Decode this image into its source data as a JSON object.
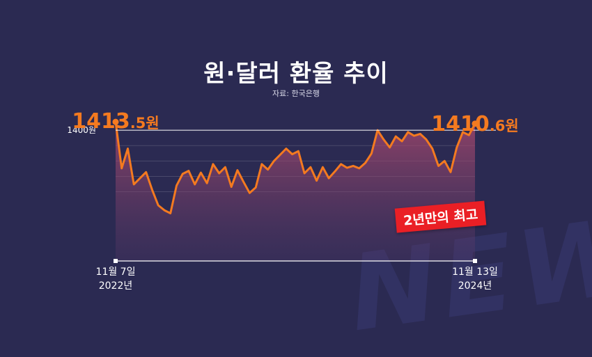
{
  "title": "원·달러 환율 추이",
  "source": "자료: 한국은행",
  "badge": "2년만의 최고",
  "watermark": "NEWS",
  "colors": {
    "background": "#2b2a52",
    "line": "#f47a20",
    "accent_red": "#ea1f25"
  },
  "chart_data": {
    "type": "area",
    "title": "원·달러 환율 추이",
    "ylim": [
      1200,
      1425
    ],
    "reference_line": {
      "value": 1400,
      "label": "1400원"
    },
    "start_value": {
      "number": "1413",
      "decimal": ".5",
      "unit": "원"
    },
    "end_value": {
      "number": "1410",
      "decimal": ".6",
      "unit": "원"
    },
    "x_labels": [
      {
        "line1": "11월 7일",
        "line2": "2022년"
      },
      {
        "line1": "11월 13일",
        "line2": "2024년"
      }
    ],
    "values": [
      1413.5,
      1338,
      1370,
      1312,
      1322,
      1332,
      1303,
      1278,
      1270,
      1265,
      1310,
      1329,
      1334,
      1312,
      1331,
      1314,
      1345,
      1330,
      1340,
      1308,
      1335,
      1316,
      1298,
      1307,
      1345,
      1336,
      1350,
      1360,
      1370,
      1361,
      1366,
      1330,
      1340,
      1318,
      1340,
      1322,
      1333,
      1345,
      1339,
      1342,
      1338,
      1347,
      1362,
      1400,
      1385,
      1372,
      1390,
      1382,
      1397,
      1391,
      1394,
      1385,
      1370,
      1342,
      1350,
      1332,
      1372,
      1397,
      1392,
      1410.6
    ]
  }
}
